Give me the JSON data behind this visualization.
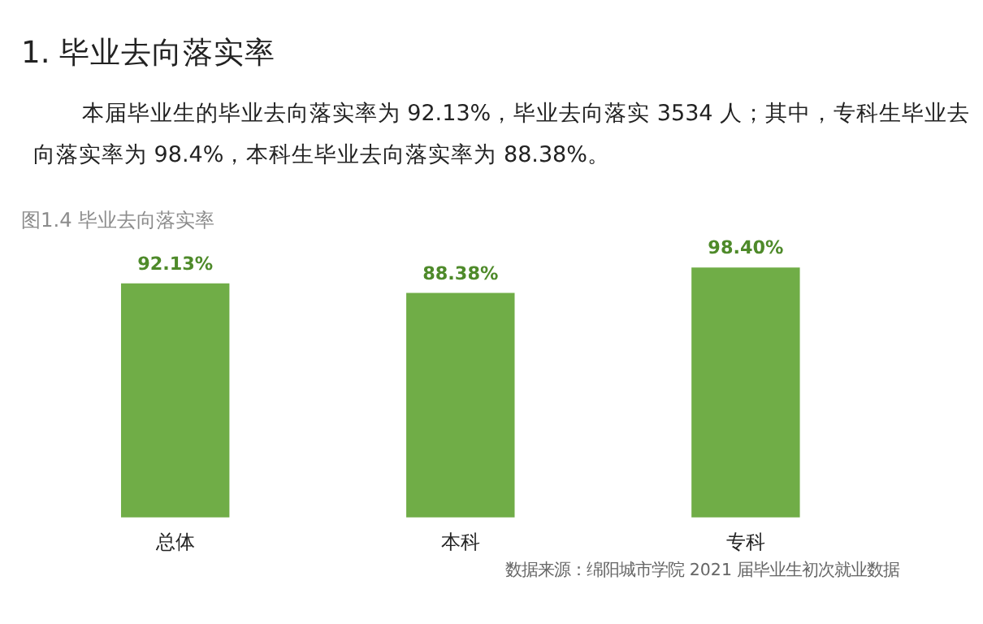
{
  "chart_data": {
    "type": "bar",
    "title": "1. 毕业去向落实率",
    "subtitle": "本届毕业生的毕业去向落实率为 92.13%，毕业去向落实 3534 人；其中，专科生毕业去向落实率为 98.4%，本科生毕业去向落实率为 88.38%。",
    "annotations": [
      "图1.4 毕业去向落实率",
      "数据来源：绵阳城市学院 2021 届毕业生初次就业数据"
    ],
    "categories": [
      "总体",
      "本科",
      "专科"
    ],
    "values": [
      92.13,
      88.38,
      98.4
    ],
    "value_labels": [
      "92.13%",
      "88.38%",
      "98.40%"
    ],
    "color": "#70ad47"
  }
}
